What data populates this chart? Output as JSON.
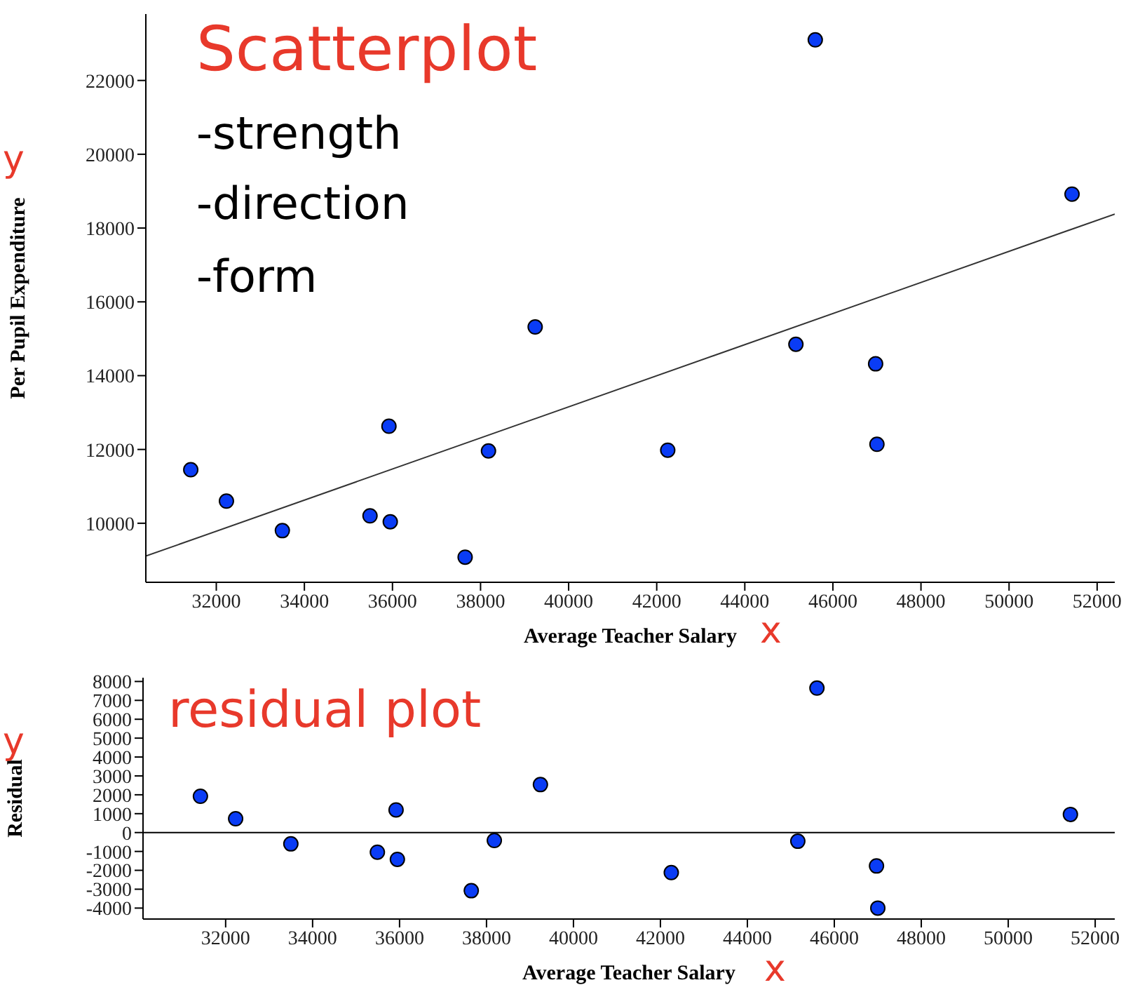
{
  "chart_data": [
    {
      "type": "scatter",
      "xlabel": "Average Teacher Salary",
      "ylabel": "Per Pupil Expenditure",
      "xlim": [
        30400,
        52400
      ],
      "ylim": [
        8400,
        23800
      ],
      "xticks": [
        32000,
        34000,
        36000,
        38000,
        40000,
        42000,
        44000,
        46000,
        48000,
        50000,
        52000
      ],
      "yticks": [
        10000,
        12000,
        14000,
        16000,
        18000,
        20000,
        22000
      ],
      "grid": false,
      "marker": "circle",
      "annotations": [
        "Scatterplot",
        "-strength",
        "-direction",
        "-form",
        "y",
        "x"
      ],
      "series": [
        {
          "color": "#0a3cf5",
          "x": [
            31420,
            32230,
            33500,
            35490,
            35950,
            35920,
            37650,
            38180,
            39240,
            42250,
            45160,
            45600,
            46970,
            47000,
            51430
          ],
          "values": [
            11450,
            10600,
            9800,
            10200,
            10040,
            12630,
            9080,
            11960,
            15320,
            11980,
            14850,
            23100,
            14320,
            12140,
            18920
          ]
        },
        {
          "type": "line",
          "color": "#333333",
          "marker": "none",
          "x": [
            30400,
            52400
          ],
          "values": [
            9110,
            18380
          ]
        }
      ]
    },
    {
      "type": "scatter",
      "xlabel": "Average Teacher Salary",
      "ylabel": "Residual",
      "xlim": [
        30100,
        52450
      ],
      "ylim": [
        -4580,
        8200
      ],
      "xticks": [
        32000,
        34000,
        36000,
        38000,
        40000,
        42000,
        44000,
        46000,
        48000,
        50000,
        52000
      ],
      "yticks": [
        -4000,
        -3000,
        -2000,
        -1000,
        0,
        1000,
        2000,
        3000,
        4000,
        5000,
        6000,
        7000,
        8000
      ],
      "grid": false,
      "marker": "circle",
      "annotations": [
        "residual plot",
        "y",
        "x"
      ],
      "ref_lines": [
        {
          "axis": "y",
          "value": 0,
          "color": "#000000"
        }
      ],
      "series": [
        {
          "color": "#0a3cf5",
          "x": [
            31420,
            32230,
            33500,
            35490,
            35950,
            35920,
            37650,
            38180,
            39240,
            42250,
            45160,
            45600,
            46970,
            47000,
            51430
          ],
          "values": [
            1920,
            730,
            -600,
            -1040,
            -1420,
            1200,
            -3080,
            -420,
            2540,
            -2120,
            -460,
            7650,
            -1770,
            -4000,
            960
          ]
        }
      ]
    }
  ]
}
